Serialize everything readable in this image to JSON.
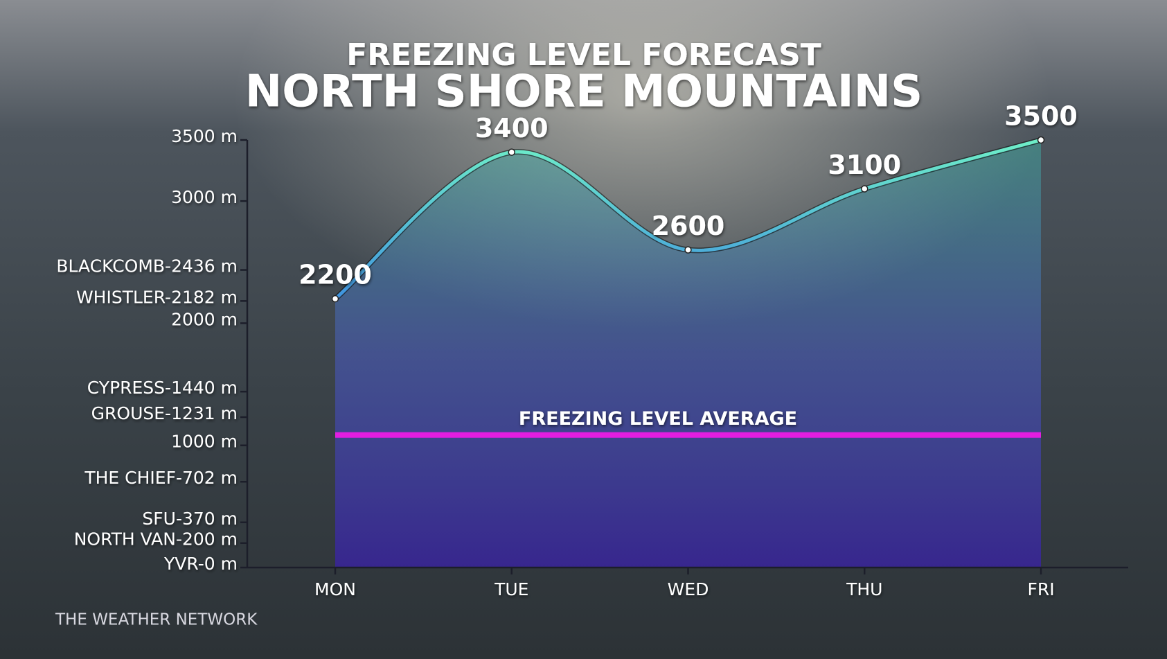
{
  "chart_data": {
    "type": "line",
    "title": "FREEZING LEVEL FORECAST",
    "subtitle": "NORTH SHORE MOUNTAINS",
    "source": "THE WEATHER NETWORK",
    "categories": [
      "MON",
      "TUE",
      "WED",
      "THU",
      "FRI"
    ],
    "series": [
      {
        "name": "Freezing level",
        "color": "#5fe0c0",
        "values": [
          2200,
          3400,
          2600,
          3100,
          3500
        ]
      }
    ],
    "ylim": [
      0,
      3500
    ],
    "yticks": [
      {
        "value": 3500,
        "label": "3500 m"
      },
      {
        "value": 3000,
        "label": "3000 m"
      },
      {
        "value": 2436,
        "label": "BLACKCOMB-2436 m"
      },
      {
        "value": 2182,
        "label": "WHISTLER-2182 m"
      },
      {
        "value": 2000,
        "label": "2000 m"
      },
      {
        "value": 1440,
        "label": "CYPRESS-1440 m"
      },
      {
        "value": 1231,
        "label": "GROUSE-1231 m"
      },
      {
        "value": 1000,
        "label": "1000 m"
      },
      {
        "value": 702,
        "label": "THE CHIEF-702 m"
      },
      {
        "value": 370,
        "label": "SFU-370 m"
      },
      {
        "value": 200,
        "label": "NORTH VAN-200 m"
      },
      {
        "value": 0,
        "label": "YVR-0 m"
      }
    ],
    "average": {
      "label": "FREEZING LEVEL AVERAGE",
      "value": 1085,
      "color": "#e21ee0"
    }
  }
}
